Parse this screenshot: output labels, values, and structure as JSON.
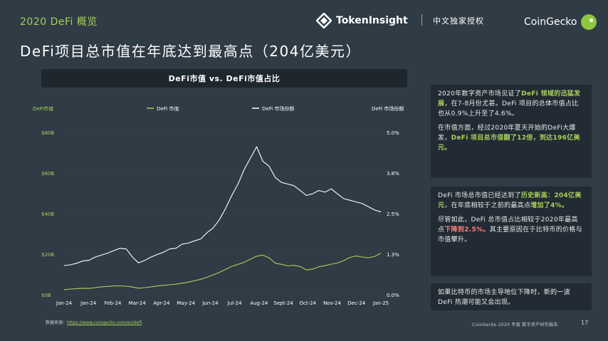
{
  "header": {
    "section_label": "2020 DeFi 概览",
    "brand_tokeninsight": "TokenInsight",
    "authorization": "中文独家授权",
    "brand_coingecko": "CoinGecko",
    "main_title": "DeFi项目总市值在年底达到最高点（204亿美元）"
  },
  "chart_data": {
    "type": "line",
    "title": "DeFi市值 vs. DeFi市值占比",
    "y_left_label": "DeFi市值",
    "y_right_label": "DeFi 市场份额",
    "y_left_ticks": [
      "$0B",
      "$20B",
      "$40B",
      "$60B",
      "$80B"
    ],
    "y_right_ticks": [
      "0.0%",
      "1.3%",
      "2.5%",
      "3.8%",
      "5.0%"
    ],
    "ylim_left": [
      0,
      80
    ],
    "ylim_right": [
      0,
      5
    ],
    "x_ticks": [
      "Jan-24",
      "Jan-24",
      "Feb-24",
      "Mar-24",
      "Apr-24",
      "May-24",
      "Jun-24",
      "Jul-24",
      "Aug-24",
      "Sept-24",
      "Oct-24",
      "Nov-24",
      "Dec-24",
      "Jan-25"
    ],
    "grid": true,
    "series": [
      {
        "name": "DeFi 市值",
        "axis": "left",
        "color": "#a8d15a",
        "values": [
          2.5,
          2.8,
          3.0,
          3.2,
          3.1,
          3.5,
          3.9,
          4.1,
          4.3,
          4.4,
          4.2,
          3.8,
          3.2,
          3.5,
          3.9,
          4.3,
          4.6,
          4.9,
          5.2,
          5.7,
          6.2,
          6.9,
          7.6,
          8.6,
          9.8,
          11.0,
          12.5,
          14.0,
          15.0,
          16.0,
          17.5,
          19.0,
          19.5,
          18.2,
          15.5,
          15.0,
          14.2,
          14.5,
          13.9,
          12.2,
          12.6,
          13.8,
          14.3,
          15.1,
          15.6,
          16.8,
          18.4,
          19.1,
          18.6,
          18.2,
          18.9,
          20.4
        ]
      },
      {
        "name": "DeFi 市场份额",
        "axis": "right",
        "color": "#ffffff",
        "values": [
          0.9,
          0.92,
          0.97,
          1.04,
          1.06,
          1.16,
          1.22,
          1.28,
          1.36,
          1.43,
          1.41,
          1.16,
          0.98,
          1.06,
          1.16,
          1.24,
          1.31,
          1.41,
          1.43,
          1.56,
          1.59,
          1.66,
          1.72,
          1.91,
          2.06,
          2.31,
          2.66,
          3.06,
          3.41,
          3.86,
          4.21,
          4.56,
          4.11,
          3.96,
          3.61,
          3.46,
          3.41,
          3.36,
          3.21,
          3.06,
          3.11,
          3.21,
          3.16,
          3.26,
          3.11,
          2.96,
          2.91,
          2.86,
          2.81,
          2.71,
          2.61,
          2.55
        ]
      }
    ]
  },
  "box1": {
    "p1_a": "2020年数字资产市场见证了",
    "p1_hl": "DeFi 领域的迅猛发展",
    "p1_b": "，在7-8月份尤甚。DeFi 项目的总体市值占比也从0.9%上升至了4.6%。",
    "p2_a": "在市值方面，经过2020年夏天开始的DeFi大爆发，",
    "p2_hl": "DeFi 项目总市值翻了12倍，到达196亿美元。"
  },
  "box2": {
    "p1_a": "DeFi 市场总市值已经达到了",
    "p1_hl1": "历史新高：204亿美元",
    "p1_b": "，在年底相较于之前的最高点",
    "p1_hl2": "增加了4%。",
    "p2_a": "尽管如此，DeFi 总市值占比相较于2020年最高点",
    "p2_hl": "下降到2.5%。",
    "p2_b": "其主要原因在于比特币的价格与市值攀升。"
  },
  "box3": {
    "text": "如果比特币的市场主导地位下降时，新的一波 DeFi 热潮可能又会出现。"
  },
  "footer": {
    "source_label": "数据来源：",
    "source_url": "https://www.coingecko.com/en/defi",
    "report": "CoinGecko 2020 年度 数字资产研究报告",
    "page": "17"
  },
  "colors": {
    "background": "#2f3b45",
    "accent_green": "#a8d15a",
    "accent_red": "#ff7a7a",
    "panel": "#222b33"
  }
}
